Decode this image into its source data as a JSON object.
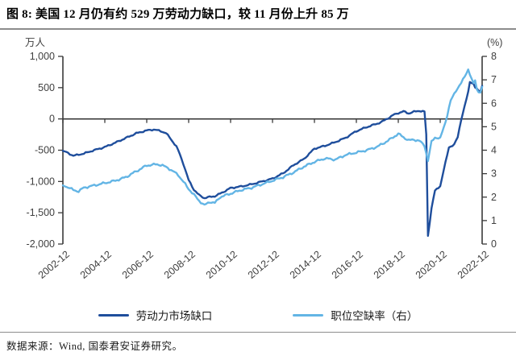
{
  "header": {
    "title": "图 8: 美国 12 月仍有约 529 万劳动力缺口，较 11 月份上升 85 万"
  },
  "source": {
    "text": "数据来源：Wind, 国泰君安证券研究。"
  },
  "legend": [
    {
      "label": "劳动力市场缺口",
      "color": "#1f4e9c"
    },
    {
      "label": "职位空缺率（右）",
      "color": "#63b5e5"
    }
  ],
  "colors": {
    "dark_series": "#1f4e9c",
    "light_series": "#63b5e5",
    "axis": "#3a3a3a",
    "tick_text": "#404040",
    "rule": "#8c8c8c"
  },
  "chart_data": {
    "type": "line",
    "title": "美国 12 月仍有约 529 万劳动力缺口，较 11 月份上升 85 万",
    "left_axis": {
      "unit": "万人",
      "min": -2000,
      "max": 1000,
      "ticks": [
        "1,000",
        "500",
        "0",
        "-500",
        "-1,000",
        "-1,500",
        "-2,000"
      ]
    },
    "right_axis": {
      "unit": "(%)",
      "min": 0,
      "max": 8,
      "ticks": [
        "8",
        "7",
        "6",
        "5",
        "4",
        "3",
        "2",
        "1",
        "0"
      ]
    },
    "x_axis": {
      "months_total": 240,
      "tick_labels": [
        "2002-12",
        "2004-12",
        "2006-12",
        "2008-12",
        "2010-12",
        "2012-12",
        "2014-12",
        "2016-12",
        "2018-12",
        "2020-12",
        "2022-12"
      ]
    },
    "grid": false,
    "legend_position": "bottom",
    "series": [
      {
        "name": "劳动力市场缺口",
        "axis": "left",
        "unit": "万人",
        "color": "#1f4e9c",
        "points": [
          [
            0,
            -510
          ],
          [
            3,
            -545
          ],
          [
            6,
            -590
          ],
          [
            9,
            -570
          ],
          [
            12,
            -555
          ],
          [
            15,
            -525
          ],
          [
            18,
            -500
          ],
          [
            21,
            -475
          ],
          [
            24,
            -450
          ],
          [
            30,
            -380
          ],
          [
            36,
            -305
          ],
          [
            42,
            -230
          ],
          [
            48,
            -185
          ],
          [
            52,
            -168
          ],
          [
            56,
            -195
          ],
          [
            59,
            -225
          ],
          [
            62,
            -330
          ],
          [
            65,
            -440
          ],
          [
            67,
            -570
          ],
          [
            69,
            -720
          ],
          [
            72,
            -980
          ],
          [
            75,
            -1130
          ],
          [
            78,
            -1220
          ],
          [
            81,
            -1265
          ],
          [
            84,
            -1248
          ],
          [
            87,
            -1235
          ],
          [
            90,
            -1195
          ],
          [
            96,
            -1105
          ],
          [
            102,
            -1080
          ],
          [
            108,
            -1045
          ],
          [
            114,
            -1000
          ],
          [
            120,
            -955
          ],
          [
            126,
            -870
          ],
          [
            132,
            -740
          ],
          [
            138,
            -640
          ],
          [
            144,
            -475
          ],
          [
            150,
            -430
          ],
          [
            156,
            -370
          ],
          [
            162,
            -300
          ],
          [
            168,
            -195
          ],
          [
            174,
            -130
          ],
          [
            180,
            -75
          ],
          [
            183,
            -40
          ],
          [
            186,
            10
          ],
          [
            189,
            60
          ],
          [
            192,
            95
          ],
          [
            195,
            120
          ],
          [
            198,
            88
          ],
          [
            201,
            115
          ],
          [
            204,
            130
          ],
          [
            207,
            115
          ],
          [
            208,
            -250
          ],
          [
            209,
            -1870
          ],
          [
            211,
            -1430
          ],
          [
            213,
            -1150
          ],
          [
            216,
            -1070
          ],
          [
            219,
            -700
          ],
          [
            221,
            -450
          ],
          [
            224,
            -415
          ],
          [
            226,
            -290
          ],
          [
            228,
            -10
          ],
          [
            230,
            200
          ],
          [
            232,
            430
          ],
          [
            233,
            600
          ],
          [
            235,
            560
          ],
          [
            236,
            500
          ],
          [
            238,
            452
          ],
          [
            239,
            444
          ],
          [
            240,
            529
          ]
        ]
      },
      {
        "name": "职位空缺率（右）",
        "axis": "right",
        "unit": "%",
        "color": "#63b5e5",
        "points": [
          [
            0,
            2.5
          ],
          [
            3,
            2.42
          ],
          [
            6,
            2.3
          ],
          [
            9,
            2.25
          ],
          [
            12,
            2.4
          ],
          [
            18,
            2.5
          ],
          [
            24,
            2.6
          ],
          [
            30,
            2.7
          ],
          [
            36,
            2.85
          ],
          [
            42,
            3.1
          ],
          [
            48,
            3.35
          ],
          [
            54,
            3.4
          ],
          [
            57,
            3.35
          ],
          [
            60,
            3.25
          ],
          [
            66,
            2.95
          ],
          [
            72,
            2.35
          ],
          [
            75,
            2.1
          ],
          [
            78,
            1.85
          ],
          [
            81,
            1.65
          ],
          [
            84,
            1.8
          ],
          [
            87,
            1.75
          ],
          [
            90,
            2.0
          ],
          [
            96,
            2.15
          ],
          [
            102,
            2.3
          ],
          [
            108,
            2.4
          ],
          [
            114,
            2.55
          ],
          [
            120,
            2.7
          ],
          [
            126,
            2.85
          ],
          [
            132,
            3.05
          ],
          [
            138,
            3.3
          ],
          [
            144,
            3.5
          ],
          [
            150,
            3.65
          ],
          [
            156,
            3.6
          ],
          [
            162,
            3.8
          ],
          [
            168,
            3.9
          ],
          [
            174,
            4.0
          ],
          [
            180,
            4.15
          ],
          [
            186,
            4.4
          ],
          [
            192,
            4.7
          ],
          [
            195,
            4.55
          ],
          [
            198,
            4.42
          ],
          [
            201,
            4.45
          ],
          [
            204,
            4.4
          ],
          [
            207,
            4.2
          ],
          [
            209,
            3.55
          ],
          [
            211,
            4.35
          ],
          [
            213,
            4.55
          ],
          [
            216,
            4.5
          ],
          [
            219,
            5.2
          ],
          [
            222,
            6.1
          ],
          [
            225,
            6.55
          ],
          [
            228,
            6.85
          ],
          [
            231,
            7.3
          ],
          [
            232,
            7.45
          ],
          [
            234,
            7.0
          ],
          [
            235,
            6.85
          ],
          [
            236,
            7.0
          ],
          [
            237,
            6.6
          ],
          [
            238,
            6.5
          ],
          [
            239,
            6.45
          ],
          [
            240,
            6.7
          ]
        ]
      }
    ]
  }
}
